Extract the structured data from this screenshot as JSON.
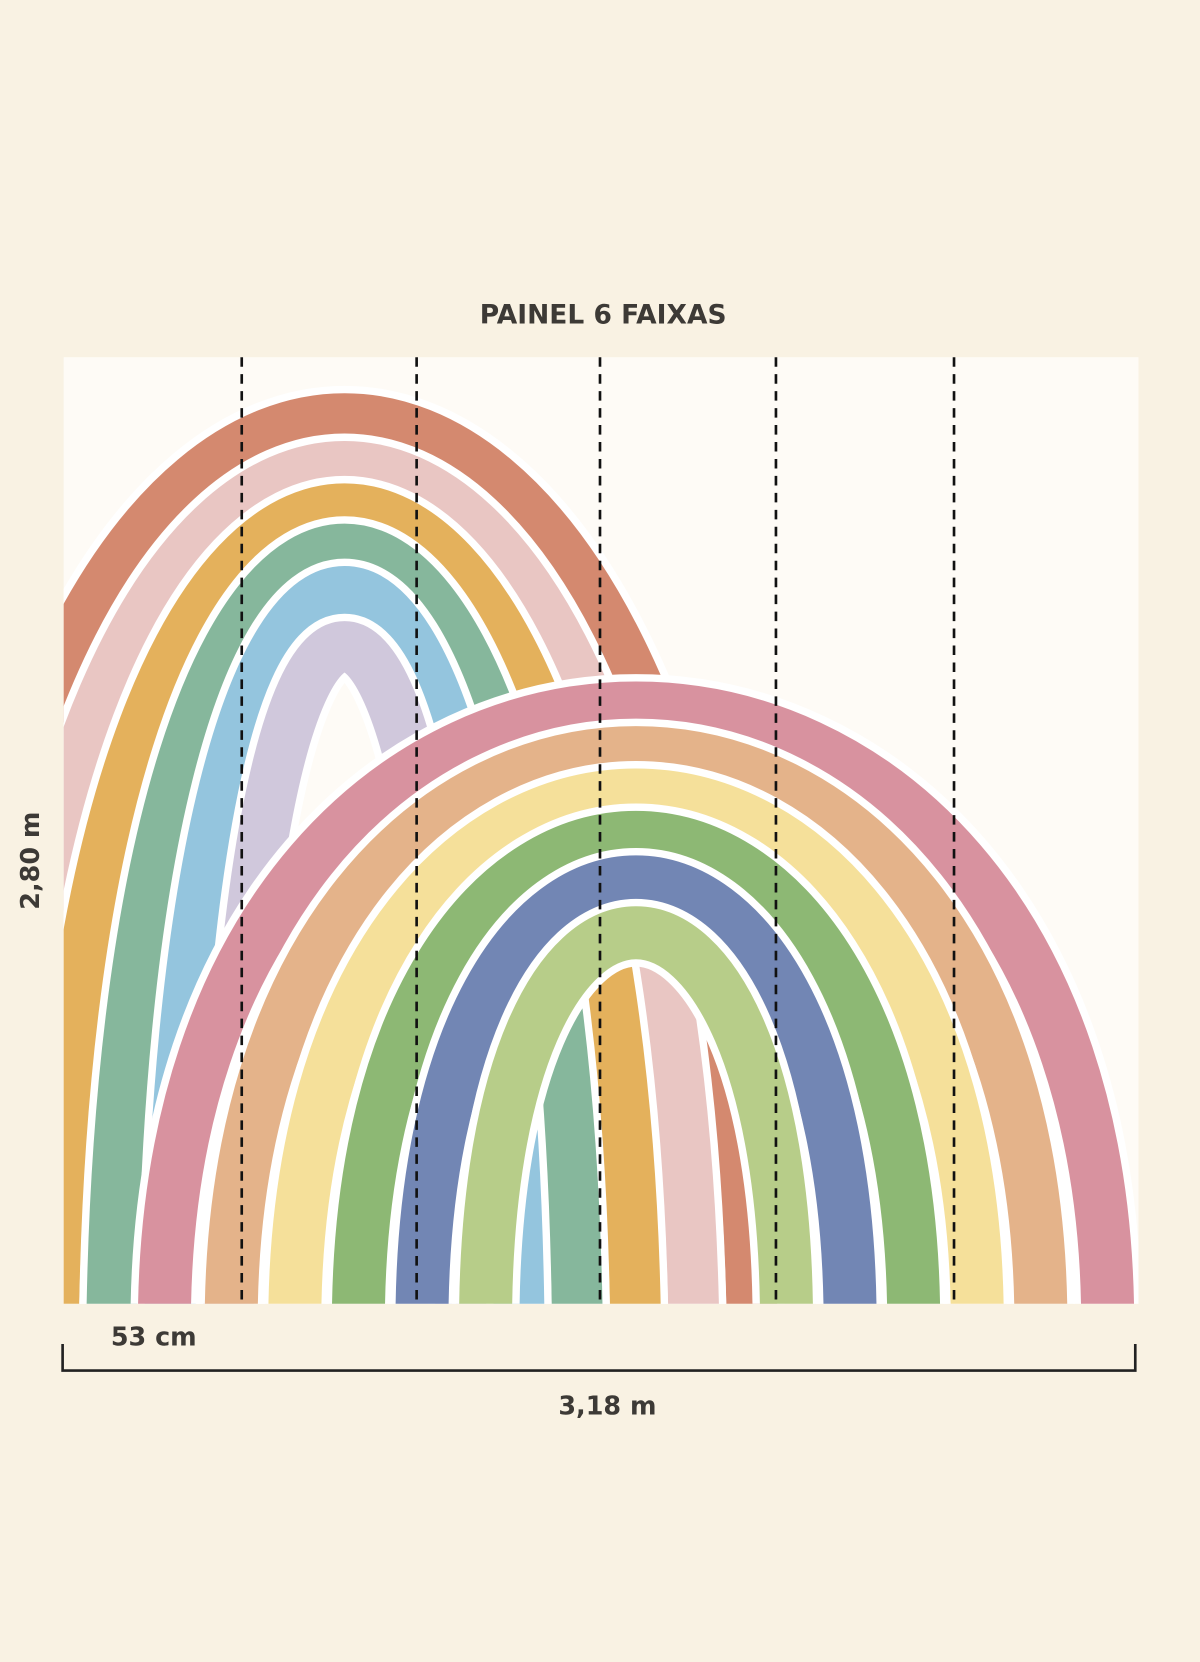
{
  "title": "PAINEL 6 FAIXAS",
  "height_label": "2,80 m",
  "strip_width_label": "53 cm",
  "total_width_label": "3,18 m"
}
